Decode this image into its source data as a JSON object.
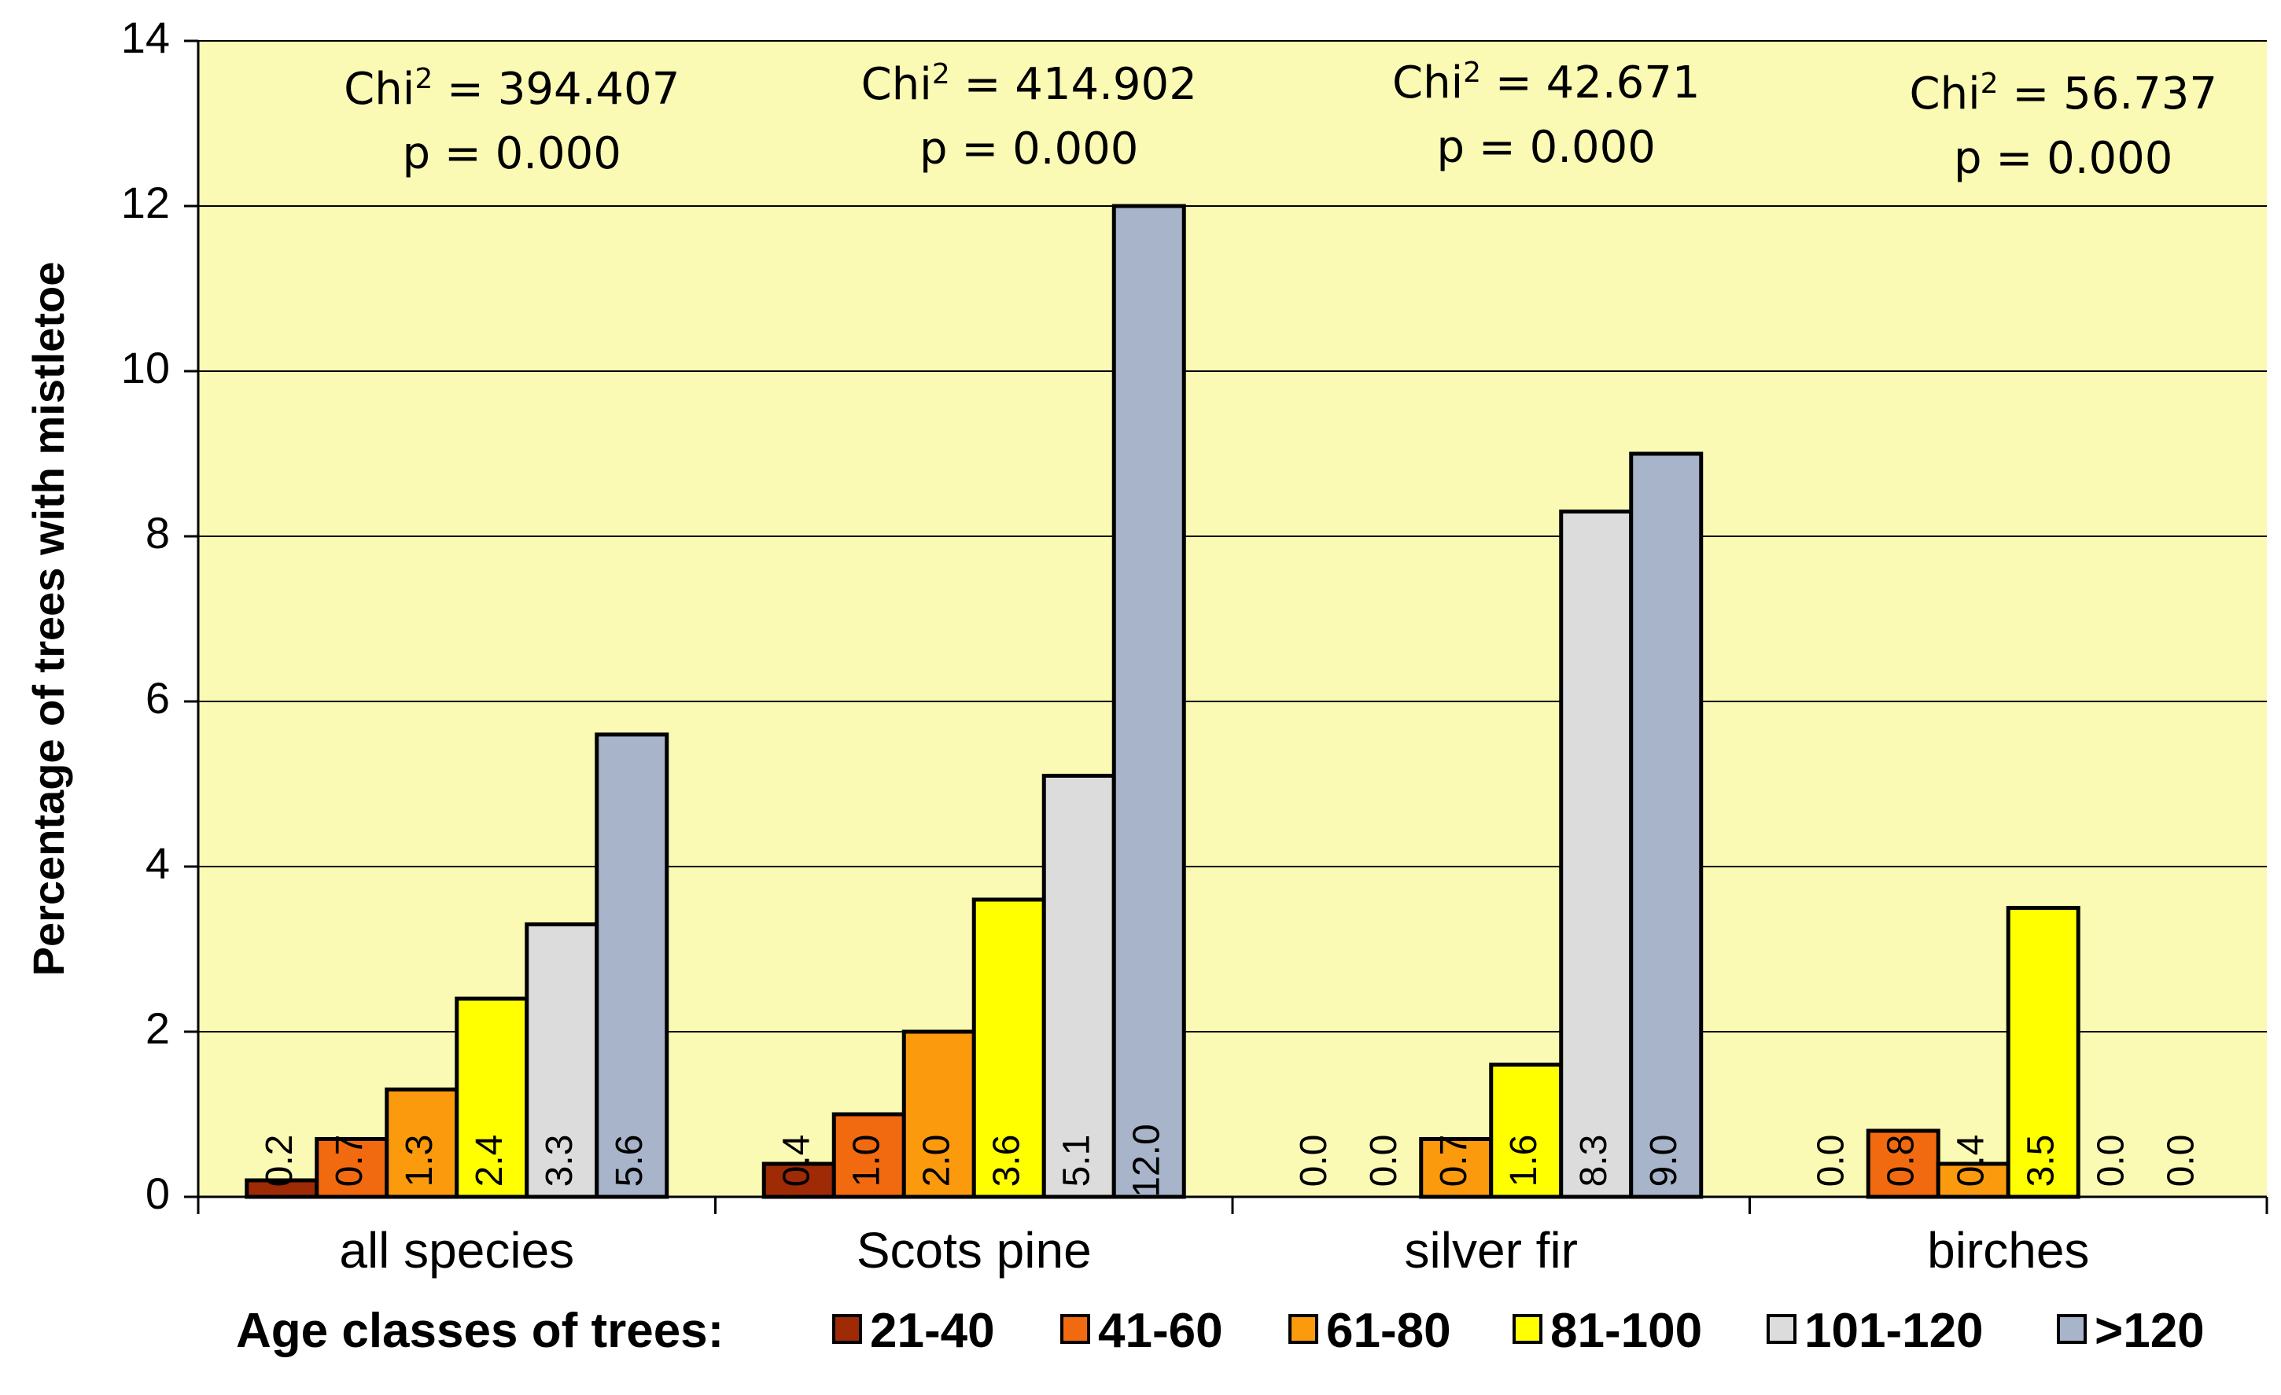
{
  "chart_data": {
    "type": "bar",
    "ylabel": "Percentage of trees with mistletoe",
    "ylim": [
      0,
      14
    ],
    "yticks": [
      "0",
      "2",
      "4",
      "6",
      "8",
      "10",
      "12",
      "14"
    ],
    "grid": true,
    "categories": [
      "all species",
      "Scots pine",
      "silver fir",
      "birches"
    ],
    "legend_title": "Age classes of trees:",
    "legend_position": "bottom",
    "series": [
      {
        "name": "21-40",
        "color": "#9E2A06",
        "values": [
          0.2,
          0.4,
          0.0,
          0.0
        ],
        "labels": [
          "0.2",
          "0.4",
          "0.0",
          "0.0"
        ]
      },
      {
        "name": "41-60",
        "color": "#F26A10",
        "values": [
          0.7,
          1.0,
          0.0,
          0.8
        ],
        "labels": [
          "0.7",
          "1.0",
          "0.0",
          "0.8"
        ]
      },
      {
        "name": "61-80",
        "color": "#FB9A0C",
        "values": [
          1.3,
          2.0,
          0.7,
          0.4
        ],
        "labels": [
          "1.3",
          "2.0",
          "0.7",
          "0.4"
        ]
      },
      {
        "name": "81-100",
        "color": "#FFFF00",
        "values": [
          2.4,
          3.6,
          1.6,
          3.5
        ],
        "labels": [
          "2.4",
          "3.6",
          "1.6",
          "3.5"
        ]
      },
      {
        "name": "101-120",
        "color": "#DCDCDC",
        "values": [
          3.3,
          5.1,
          8.3,
          0.0
        ],
        "labels": [
          "3.3",
          "5.1",
          "8.3",
          "0.0"
        ]
      },
      {
        "name": ">120",
        "color": "#A7B4CA",
        "values": [
          5.6,
          12.0,
          9.0,
          0.0
        ],
        "labels": [
          "5.6",
          "12.0",
          "9.0",
          "0.0"
        ]
      }
    ],
    "annotations": [
      {
        "chi": "Chi",
        "sup": "2",
        "value": " = 394.407",
        "p": "p = 0.000"
      },
      {
        "chi": "Chi",
        "sup": "2",
        "value": " = 414.902",
        "p": "p = 0.000"
      },
      {
        "chi": "Chi",
        "sup": "2",
        "value": " = 42.671",
        "p": "p = 0.000"
      },
      {
        "chi": "Chi",
        "sup": "2",
        "value": " = 56.737",
        "p": "p = 0.000"
      }
    ],
    "colors": {
      "plot_bg": "#FAFAB4",
      "grid": "#000000",
      "bar_stroke": "#000000"
    }
  }
}
